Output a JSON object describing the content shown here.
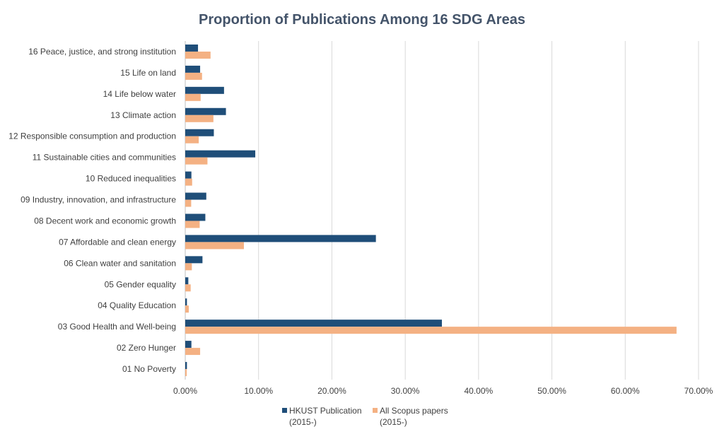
{
  "chart_data": {
    "type": "bar",
    "orientation": "horizontal",
    "title": "Proportion of Publications Among 16 SDG Areas",
    "xlabel": "",
    "ylabel": "",
    "xlim": [
      0,
      70
    ],
    "x_ticks": [
      "0.00%",
      "10.00%",
      "20.00%",
      "30.00%",
      "40.00%",
      "50.00%",
      "60.00%",
      "70.00%"
    ],
    "grid": "vertical",
    "legend_position": "bottom",
    "categories": [
      "01 No Poverty",
      "02 Zero Hunger",
      "03 Good Health and Well-being",
      "04 Quality Education",
      "05 Gender equality",
      "06 Clean water and sanitation",
      "07 Affordable and clean energy",
      "08 Decent work and economic growth",
      "09 Industry, innovation, and infrastructure",
      "10 Reduced inequalities",
      "11 Sustainable cities and communities",
      "12 Responsible consumption and production",
      "13 Climate action",
      "14 Life below water",
      "15 Life on land",
      "16 Peace, justice, and strong institution"
    ],
    "series": [
      {
        "name": "HKUST Publication (2015-)",
        "legend_lines": [
          "HKUST Publication",
          "(2015-)"
        ],
        "color": "#1f4e79",
        "values": [
          0.23,
          0.84,
          35.0,
          0.23,
          0.42,
          2.35,
          26.0,
          2.74,
          2.87,
          0.84,
          9.55,
          3.9,
          5.55,
          5.29,
          2.03,
          1.74
        ]
      },
      {
        "name": "All Scopus papers (2015-)",
        "legend_lines": [
          "All Scopus papers",
          "(2015-)"
        ],
        "color": "#f4b183",
        "values": [
          0.2,
          2.03,
          67.0,
          0.48,
          0.74,
          0.9,
          8.0,
          1.97,
          0.81,
          0.94,
          3.03,
          1.84,
          3.84,
          2.1,
          2.29,
          3.45
        ]
      }
    ]
  }
}
